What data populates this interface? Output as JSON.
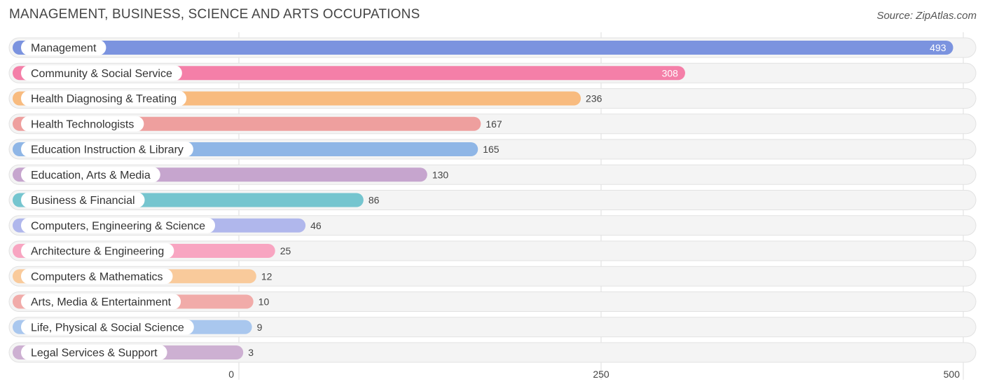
{
  "header": {
    "title": "MANAGEMENT, BUSINESS, SCIENCE AND ARTS OCCUPATIONS",
    "source": "Source: ZipAtlas.com"
  },
  "chart_data": {
    "type": "bar",
    "orientation": "horizontal",
    "title": "MANAGEMENT, BUSINESS, SCIENCE AND ARTS OCCUPATIONS",
    "xlabel": "",
    "ylabel": "",
    "xlim": [
      0,
      500
    ],
    "ticks": [
      0,
      250,
      500
    ],
    "tick_labels": [
      "0",
      "250",
      "500"
    ],
    "grid": true,
    "categories": [
      "Management",
      "Community & Social Service",
      "Health Diagnosing & Treating",
      "Health Technologists",
      "Education Instruction & Library",
      "Education, Arts & Media",
      "Business & Financial",
      "Computers, Engineering & Science",
      "Architecture & Engineering",
      "Computers & Mathematics",
      "Arts, Media & Entertainment",
      "Life, Physical & Social Science",
      "Legal Services & Support"
    ],
    "values": [
      493,
      308,
      236,
      167,
      165,
      130,
      86,
      46,
      25,
      12,
      10,
      9,
      3
    ],
    "value_labels": [
      "493",
      "308",
      "236",
      "167",
      "165",
      "130",
      "86",
      "46",
      "25",
      "12",
      "10",
      "9",
      "3"
    ],
    "colors": [
      "#7b93df",
      "#f47fa8",
      "#f8bb7f",
      "#ee9f9e",
      "#8fb6e6",
      "#c6a5ce",
      "#75c5cf",
      "#b0b7ec",
      "#f8a5c1",
      "#f9ca9b",
      "#f1aba9",
      "#a9c7ee",
      "#cdb0d2"
    ]
  }
}
